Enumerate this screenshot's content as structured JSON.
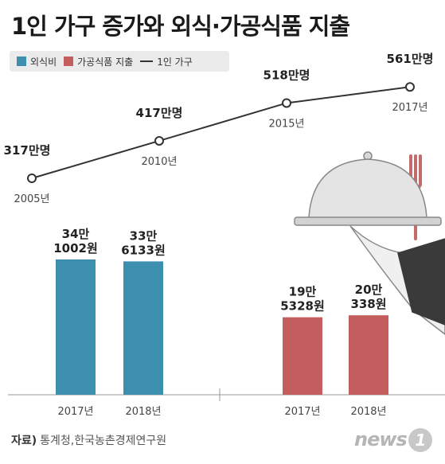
{
  "title": "1인 가구 증가와 외식·가공식품 지출",
  "legend": {
    "dining_out": "외식비",
    "processed_food": "가공식품 지출",
    "single_households": "1인 가구"
  },
  "colors": {
    "dining_out": "#3d8fb0",
    "processed_food": "#c45e5e",
    "line": "#333333"
  },
  "chart_data": [
    {
      "type": "line",
      "series": [
        {
          "name": "1인 가구",
          "x": [
            "2005년",
            "2010년",
            "2015년",
            "2017년"
          ],
          "values": [
            317,
            417,
            518,
            561
          ],
          "data_labels": [
            "317만명",
            "417만명",
            "518만명",
            "561만명"
          ]
        }
      ]
    },
    {
      "type": "bar",
      "series": [
        {
          "name": "외식비",
          "categories": [
            "2017년",
            "2018년"
          ],
          "values": [
            341002,
            336133
          ],
          "data_labels": [
            [
              "34만",
              "1002원"
            ],
            [
              "33만",
              "6133원"
            ]
          ]
        },
        {
          "name": "가공식품 지출",
          "categories": [
            "2017년",
            "2018년"
          ],
          "values": [
            195328,
            200338
          ],
          "data_labels": [
            [
              "19만",
              "5328원"
            ],
            [
              "20만",
              "338원"
            ]
          ]
        }
      ]
    }
  ],
  "source": {
    "label": "자료)",
    "text": "통계청,한국농촌경제연구원"
  },
  "logo": {
    "text": "news",
    "badge": "1"
  }
}
